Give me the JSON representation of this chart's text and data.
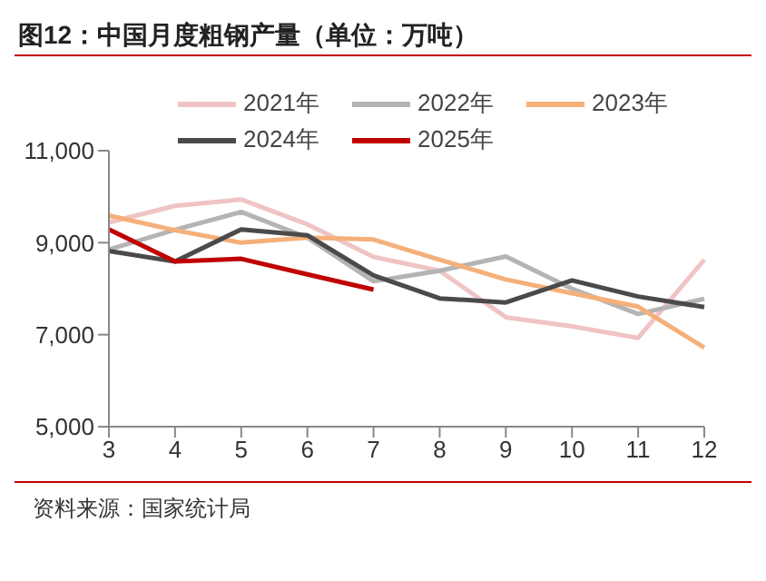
{
  "chart_data": {
    "type": "line",
    "title": "图12：中国月度粗钢产量（单位：万吨）",
    "categories": [
      "3",
      "4",
      "5",
      "6",
      "7",
      "8",
      "9",
      "10",
      "11",
      "12"
    ],
    "series": [
      {
        "name": "2021年",
        "color": "#f0c4c4",
        "values": [
          9440,
          9800,
          9940,
          9400,
          8690,
          8390,
          7380,
          7180,
          6930,
          8630
        ]
      },
      {
        "name": "2022年",
        "color": "#b4b4b4",
        "values": [
          8850,
          9280,
          9670,
          9110,
          8160,
          8390,
          8700,
          8000,
          7450,
          7780
        ]
      },
      {
        "name": "2023年",
        "color": "#f5b07a",
        "values": [
          9590,
          9270,
          9000,
          9110,
          9070,
          8630,
          8200,
          7900,
          7610,
          6720
        ]
      },
      {
        "name": "2024年",
        "color": "#4a4a4a",
        "values": [
          8820,
          8590,
          9290,
          9160,
          8290,
          7790,
          7700,
          8180,
          7830,
          7600
        ]
      },
      {
        "name": "2025年",
        "color": "#c00000",
        "values": [
          9290,
          8590,
          8650,
          8310,
          7980,
          null,
          null,
          null,
          null,
          null
        ]
      }
    ],
    "ylim": [
      5000,
      11000
    ],
    "yticks": [
      {
        "value": 5000,
        "label": "5,000"
      },
      {
        "value": 7000,
        "label": "7,000"
      },
      {
        "value": 9000,
        "label": "9,000"
      },
      {
        "value": 11000,
        "label": "11,000"
      }
    ],
    "grid": false,
    "legend": "top",
    "marker": "none",
    "line_style": "solid",
    "annotations": [
      "资料来源：国家统计局"
    ]
  }
}
